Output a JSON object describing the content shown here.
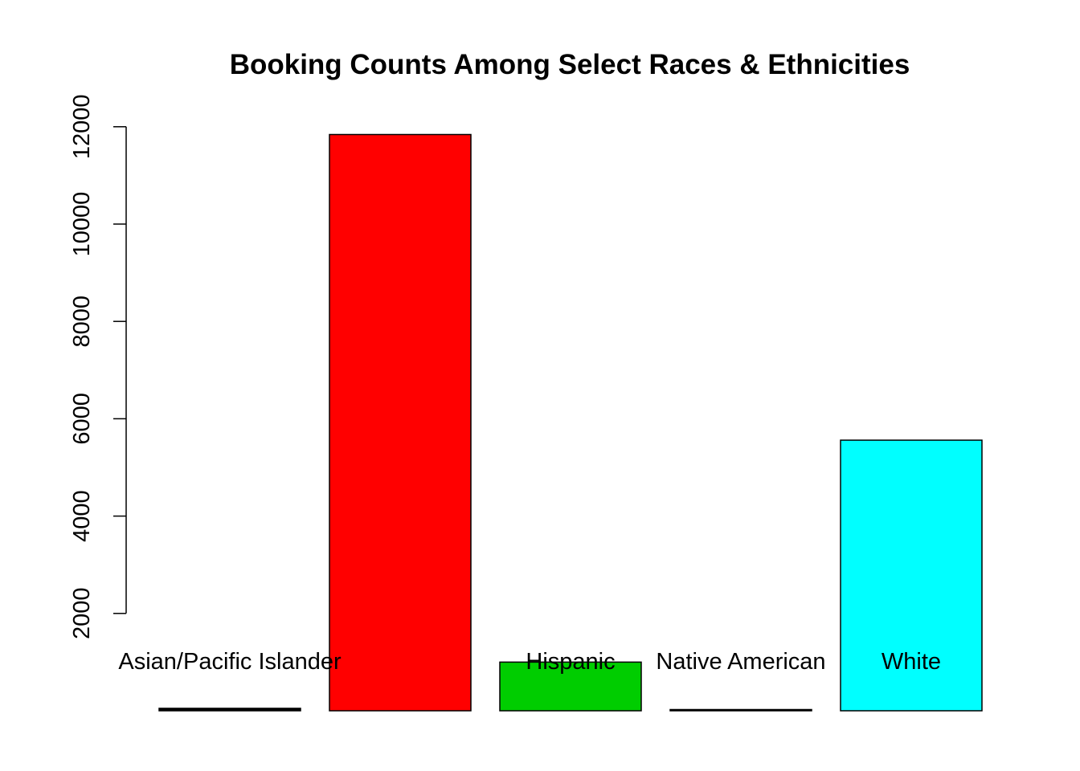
{
  "chart_data": {
    "type": "bar",
    "title": "Booking Counts Among Select Races & Ethnicities",
    "xlabel": "",
    "ylabel": "",
    "categories": [
      "Asian/Pacific Islander",
      "",
      "Hispanic",
      "Native American",
      "White"
    ],
    "values": [
      50,
      11840,
      1000,
      10,
      5560
    ],
    "colors": [
      "#000000",
      "#ff0000",
      "#00cd00",
      "#000000",
      "#00ffff"
    ],
    "ylim": [
      0,
      12000
    ],
    "yticks": [
      2000,
      4000,
      6000,
      8000,
      10000,
      12000
    ],
    "ytick_labels": [
      "2000",
      "4000",
      "6000",
      "8000",
      "10000",
      "12000"
    ],
    "grid": false,
    "legend": "none"
  }
}
